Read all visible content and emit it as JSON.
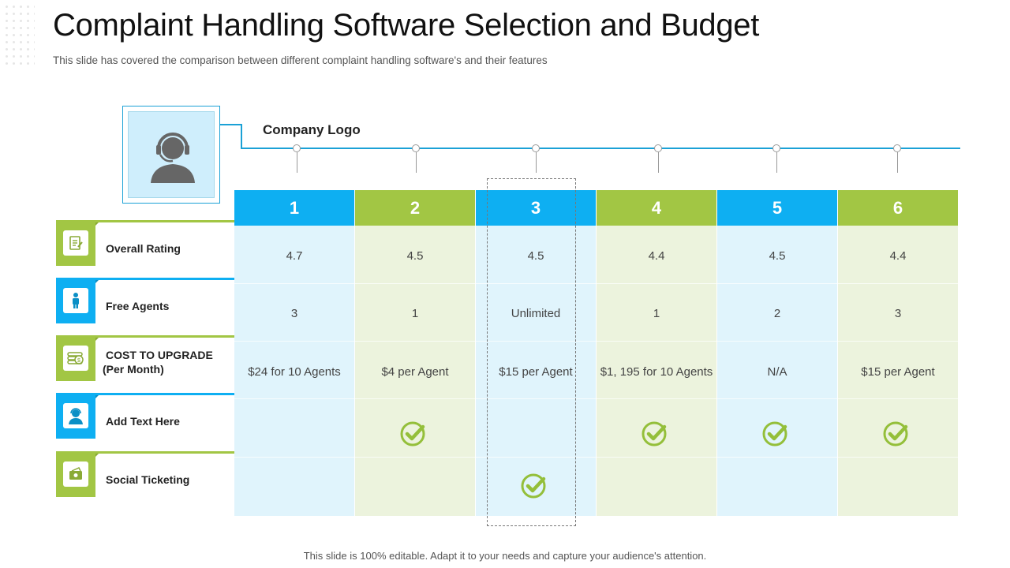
{
  "title": "Complaint Handling Software Selection and Budget",
  "subtitle": "This slide has covered the comparison between different complaint handling software's and their features",
  "footer": "This slide is 100% editable. Adapt it to your needs and capture your audience's attention.",
  "company_logo_label": "Company Logo",
  "colors": {
    "blue": "#0eaff2",
    "green": "#a2c644",
    "blue_light": "#e0f4fc",
    "green_light": "#ecf3dd"
  },
  "rows": [
    {
      "label": "Overall Rating",
      "icon": "rating-icon"
    },
    {
      "label": "Free Agents",
      "icon": "agent-icon"
    },
    {
      "label": "COST TO UPGRADE",
      "label2": "(Per Month)",
      "icon": "money-icon"
    },
    {
      "label": "Add Text Here",
      "icon": "user-icon"
    },
    {
      "label": "Social Ticketing",
      "icon": "ticket-icon"
    }
  ],
  "columns": [
    {
      "number": "1",
      "rating": "4.7",
      "agents": "3",
      "cost": "$24 for 10 Agents",
      "add_text": false,
      "social": false
    },
    {
      "number": "2",
      "rating": "4.5",
      "agents": "1",
      "cost": "$4 per Agent",
      "add_text": true,
      "social": false
    },
    {
      "number": "3",
      "rating": "4.5",
      "agents": "Unlimited",
      "cost": "$15 per Agent",
      "add_text": false,
      "social": true
    },
    {
      "number": "4",
      "rating": "4.4",
      "agents": "1",
      "cost": "$1, 195 for 10 Agents",
      "add_text": true,
      "social": false
    },
    {
      "number": "5",
      "rating": "4.5",
      "agents": "2",
      "cost": "N/A",
      "add_text": true,
      "social": false
    },
    {
      "number": "6",
      "rating": "4.4",
      "agents": "3",
      "cost": "$15 per Agent",
      "add_text": true,
      "social": false
    }
  ]
}
